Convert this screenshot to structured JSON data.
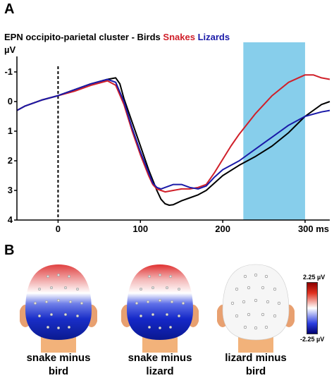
{
  "panels": {
    "a": "A",
    "b": "B"
  },
  "title": {
    "prefix": "EPN occipito-parietal cluster - Birds",
    "snakes": "Snakes",
    "lizards": "Lizards"
  },
  "unit": "µV",
  "colors": {
    "birds": "#000000",
    "snakes": "#d0202a",
    "lizards": "#1a1aa8",
    "highlight": "#87ceeb"
  },
  "chart_data": {
    "type": "line",
    "title": "EPN occipito-parietal cluster - Birds Snakes Lizards",
    "ylabel": "µV",
    "xlabel": "",
    "xlim": [
      -50,
      330
    ],
    "ylim": [
      -2,
      4
    ],
    "y_inverted": true,
    "x_ticks": [
      0,
      100,
      200,
      300
    ],
    "x_tick_labels": [
      "0",
      "100",
      "200",
      "300 ms"
    ],
    "y_ticks": [
      -1,
      0,
      1,
      2,
      3,
      4
    ],
    "y_tick_labels": [
      "-1",
      "0",
      "1",
      "2",
      "3",
      "4"
    ],
    "stimulus_onset": 0,
    "highlight_window": [
      225,
      300
    ],
    "series": [
      {
        "name": "Birds",
        "x": [
          -50,
          -40,
          -20,
          0,
          20,
          40,
          60,
          70,
          75,
          80,
          90,
          100,
          110,
          120,
          125,
          130,
          135,
          140,
          150,
          160,
          170,
          180,
          190,
          200,
          220,
          240,
          260,
          280,
          300,
          320,
          330
        ],
        "y": [
          0.3,
          0.15,
          -0.05,
          -0.2,
          -0.4,
          -0.6,
          -0.75,
          -0.8,
          -0.6,
          -0.1,
          0.7,
          1.5,
          2.3,
          3.0,
          3.3,
          3.45,
          3.5,
          3.48,
          3.35,
          3.25,
          3.15,
          3.0,
          2.75,
          2.5,
          2.15,
          1.85,
          1.5,
          1.05,
          0.5,
          0.1,
          0.0
        ]
      },
      {
        "name": "Snakes",
        "x": [
          -50,
          -40,
          -20,
          0,
          20,
          40,
          60,
          70,
          80,
          90,
          100,
          110,
          115,
          120,
          125,
          130,
          140,
          150,
          160,
          170,
          180,
          190,
          200,
          210,
          220,
          240,
          260,
          280,
          300,
          310,
          320,
          330
        ],
        "y": [
          0.3,
          0.15,
          -0.05,
          -0.2,
          -0.35,
          -0.55,
          -0.7,
          -0.55,
          0.1,
          1.0,
          1.8,
          2.5,
          2.8,
          2.95,
          3.0,
          3.05,
          3.0,
          2.95,
          2.95,
          2.9,
          2.8,
          2.4,
          1.95,
          1.5,
          1.1,
          0.4,
          -0.2,
          -0.65,
          -0.9,
          -0.9,
          -0.8,
          -0.75
        ]
      },
      {
        "name": "Lizards",
        "x": [
          -50,
          -40,
          -20,
          0,
          20,
          40,
          60,
          70,
          80,
          90,
          100,
          110,
          115,
          120,
          125,
          130,
          140,
          150,
          160,
          170,
          180,
          190,
          200,
          220,
          240,
          260,
          280,
          300,
          320,
          330
        ],
        "y": [
          0.3,
          0.15,
          -0.05,
          -0.2,
          -0.4,
          -0.6,
          -0.75,
          -0.65,
          0.0,
          0.9,
          1.7,
          2.4,
          2.75,
          2.9,
          2.95,
          2.9,
          2.8,
          2.8,
          2.9,
          2.95,
          2.85,
          2.55,
          2.3,
          2.0,
          1.6,
          1.2,
          0.8,
          0.5,
          0.35,
          0.3
        ]
      }
    ]
  },
  "topomaps": [
    {
      "caption_line1": "snake minus",
      "caption_line2": "bird"
    },
    {
      "caption_line1": "snake minus",
      "caption_line2": "lizard"
    },
    {
      "caption_line1": "lizard minus",
      "caption_line2": "bird"
    }
  ],
  "colorbar": {
    "max_label": "2.25 µV",
    "min_label": "-2.25 µV"
  }
}
